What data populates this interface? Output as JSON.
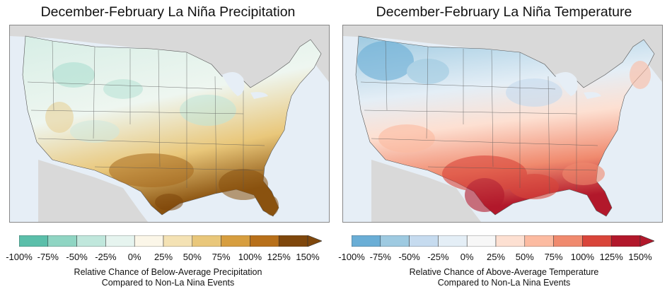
{
  "maps": [
    {
      "title": "December-February La Niña Precipitation",
      "colorbar": {
        "tick_labels": [
          "-100%",
          "-75%",
          "-50%",
          "-25%",
          "0%",
          "25%",
          "50%",
          "75%",
          "100%",
          "125%",
          "150%"
        ],
        "colors": [
          "#5bbfaa",
          "#8fd5c3",
          "#c0e7dc",
          "#e6f4ef",
          "#fbf6e8",
          "#f4e2b4",
          "#e9c77a",
          "#d79e3f",
          "#b8701a",
          "#7f470c"
        ],
        "caption_line1": "Relative Chance of Below-Average Precipitation",
        "caption_line2": "Compared to Non-La Nina Events"
      }
    },
    {
      "title": "December-February La Niña Temperature",
      "colorbar": {
        "tick_labels": [
          "-100%",
          "-75%",
          "-50%",
          "-25%",
          "0%",
          "25%",
          "50%",
          "75%",
          "100%",
          "125%",
          "150%"
        ],
        "colors": [
          "#6aaed6",
          "#9ecae1",
          "#c6dbef",
          "#e4eef6",
          "#f7f7f7",
          "#fde0d2",
          "#fcbba1",
          "#f08a6e",
          "#d9453a",
          "#b2182b"
        ],
        "caption_line1": "Relative Chance of Above-Average Temperature",
        "caption_line2": "Compared to Non-La Nina Events"
      }
    }
  ]
}
